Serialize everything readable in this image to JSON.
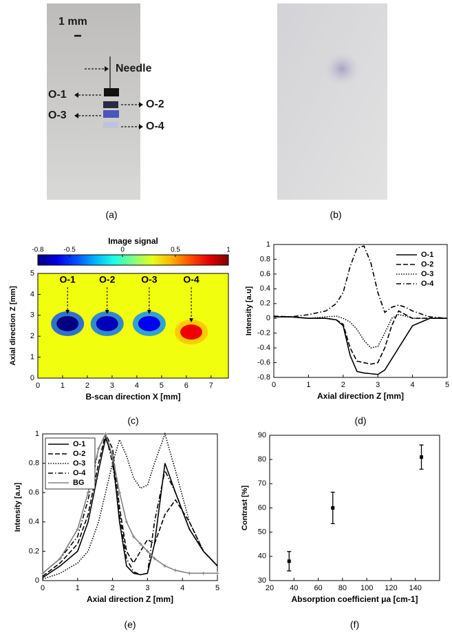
{
  "photos": [
    {
      "caption": "(a)",
      "labels": [
        "1 mm",
        "Needle",
        "O-1",
        "O-2",
        "O-3",
        "O-4"
      ]
    },
    {
      "caption": "(b)"
    }
  ],
  "chart_data": [
    {
      "type": "heatmap",
      "caption": "(c)",
      "colorbar_title": "Image signal",
      "xlabel": "B-scan direction X [mm]",
      "ylabel": "Axial direction Z [mm]",
      "xlim": [
        0,
        7.7
      ],
      "xticks": [
        0,
        1,
        2,
        3,
        4,
        5,
        6,
        7
      ],
      "ylim": [
        0,
        5
      ],
      "yticks": [
        0,
        1,
        2,
        3,
        4,
        5
      ],
      "clim": [
        -0.8,
        1
      ],
      "cticks": [
        -0.8,
        -0.5,
        0,
        0.5,
        1
      ],
      "colormap": "jet",
      "background_signal": 0.3,
      "annotations": [
        "O-1",
        "O-2",
        "O-3",
        "O-4"
      ],
      "blobs": [
        {
          "x": 1.2,
          "z": 2.6,
          "signal": -0.8
        },
        {
          "x": 2.8,
          "z": 2.6,
          "signal": -0.7
        },
        {
          "x": 4.5,
          "z": 2.6,
          "signal": -0.6
        },
        {
          "x": 6.2,
          "z": 2.2,
          "signal": 0.8
        }
      ]
    },
    {
      "type": "line",
      "caption": "(d)",
      "xlabel": "Axial direction Z [mm]",
      "ylabel": "Intensity [a.u]",
      "xlim": [
        0,
        5
      ],
      "xticks": [
        0,
        1,
        2,
        3,
        4,
        5
      ],
      "ylim": [
        -0.8,
        1
      ],
      "yticks": [
        -0.8,
        -0.6,
        -0.4,
        -0.2,
        0,
        0.2,
        0.4,
        0.6,
        0.8,
        1
      ],
      "legend": "upper right",
      "legend_frame": false,
      "x": [
        0,
        0.5,
        1,
        1.5,
        1.8,
        2,
        2.2,
        2.4,
        2.6,
        2.8,
        3,
        3.2,
        3.4,
        3.6,
        3.8,
        4,
        4.5,
        5
      ],
      "series": [
        {
          "name": "O-1",
          "color": "#000000",
          "style": "solid",
          "values": [
            0.02,
            0.02,
            0,
            0,
            -0.02,
            -0.1,
            -0.5,
            -0.72,
            -0.74,
            -0.75,
            -0.76,
            -0.7,
            -0.55,
            -0.4,
            -0.25,
            -0.1,
            0,
            0
          ]
        },
        {
          "name": "O-2",
          "color": "#000000",
          "style": "dashed",
          "values": [
            0.03,
            0.02,
            0,
            0,
            -0.02,
            -0.08,
            -0.4,
            -0.58,
            -0.6,
            -0.62,
            -0.6,
            -0.4,
            -0.1,
            0.1,
            0.05,
            0,
            0,
            0
          ]
        },
        {
          "name": "O-3",
          "color": "#000000",
          "style": "dotted",
          "values": [
            0.02,
            0.02,
            0,
            0.02,
            0.03,
            0,
            -0.05,
            -0.15,
            -0.3,
            -0.4,
            -0.38,
            -0.2,
            0,
            0.05,
            0.03,
            0,
            0,
            0
          ]
        },
        {
          "name": "O-4",
          "color": "#000000",
          "style": "dashdot",
          "values": [
            0.02,
            0.02,
            0.05,
            0.1,
            0.2,
            0.35,
            0.7,
            0.95,
            0.98,
            0.75,
            0.35,
            0.08,
            0.15,
            0.18,
            0.15,
            0.1,
            0.02,
            0
          ]
        }
      ]
    },
    {
      "type": "line",
      "caption": "(e)",
      "xlabel": "Axial direction Z [mm]",
      "ylabel": "Intensity [a.u]",
      "xlim": [
        0,
        5
      ],
      "xticks": [
        0,
        1,
        2,
        3,
        4,
        5
      ],
      "ylim": [
        0,
        1
      ],
      "yticks": [
        0,
        0.2,
        0.4,
        0.6,
        0.8,
        1
      ],
      "legend": "upper left",
      "legend_frame": true,
      "x": [
        0,
        0.5,
        1,
        1.3,
        1.6,
        1.8,
        2,
        2.2,
        2.4,
        2.6,
        2.8,
        3,
        3.2,
        3.5,
        3.8,
        4.2,
        4.6,
        5
      ],
      "series": [
        {
          "name": "O-1",
          "color": "#000000",
          "style": "solid",
          "values": [
            0.02,
            0.1,
            0.2,
            0.4,
            0.75,
            0.97,
            0.85,
            0.4,
            0.1,
            0.05,
            0.04,
            0.05,
            0.25,
            0.8,
            0.6,
            0.35,
            0.2,
            0.1
          ]
        },
        {
          "name": "O-2",
          "color": "#000000",
          "style": "dashed",
          "values": [
            0.03,
            0.12,
            0.25,
            0.45,
            0.8,
            1,
            0.9,
            0.5,
            0.2,
            0.12,
            0.2,
            0.28,
            0.25,
            0.45,
            0.55,
            0.4,
            0.2,
            0.1
          ]
        },
        {
          "name": "O-3",
          "color": "#000000",
          "style": "dotted",
          "values": [
            0.01,
            0.05,
            0.12,
            0.2,
            0.4,
            0.6,
            0.8,
            0.96,
            0.85,
            0.7,
            0.63,
            0.65,
            0.8,
            1,
            0.75,
            0.4,
            0.2,
            0.1
          ]
        },
        {
          "name": "O-4",
          "color": "#000000",
          "style": "dashdot",
          "values": [
            0.05,
            0.15,
            0.3,
            0.55,
            0.9,
            1,
            0.8,
            0.45,
            0.15,
            0.06,
            0.04,
            0.05,
            0.4,
            0.75,
            0.6,
            0.35,
            0.2,
            0.1
          ]
        },
        {
          "name": "BG",
          "color": "#808080",
          "style": "solid",
          "marker": "plus",
          "values": [
            0.05,
            0.15,
            0.35,
            0.6,
            0.9,
            1,
            0.85,
            0.6,
            0.4,
            0.3,
            0.25,
            0.2,
            0.15,
            0.1,
            0.07,
            0.05,
            0.05,
            0.05
          ]
        }
      ]
    },
    {
      "type": "errorbar",
      "caption": "(f)",
      "xlabel": "Absorption coefficient μa [cm-1]",
      "ylabel": "Contrast [%]",
      "xlim": [
        20,
        160
      ],
      "xticks": [
        20,
        40,
        60,
        80,
        100,
        120,
        140
      ],
      "ylim": [
        30,
        90
      ],
      "yticks": [
        30,
        40,
        50,
        60,
        70,
        80,
        90
      ],
      "color": "#000000",
      "x": [
        36,
        72,
        145
      ],
      "values": [
        38,
        60,
        81
      ],
      "errors": [
        4,
        6.5,
        5
      ]
    }
  ]
}
